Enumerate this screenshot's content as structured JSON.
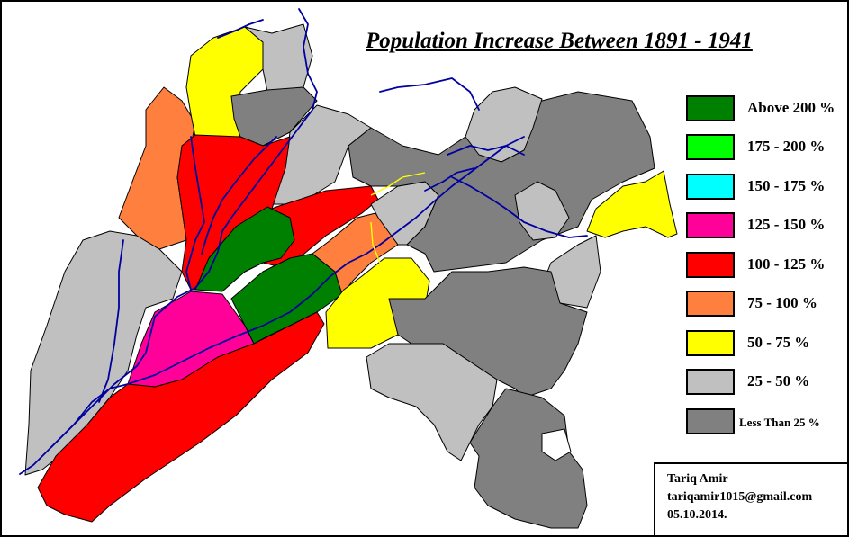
{
  "map": {
    "title": "Population Increase Between 1891 - 1941",
    "legend": [
      {
        "label": "Above 200 %",
        "color": "#008000"
      },
      {
        "label": "175 - 200 %",
        "color": "#00ff00"
      },
      {
        "label": "150 - 175 %",
        "color": "#00ffff"
      },
      {
        "label": "125 - 150 %",
        "color": "#ff0099"
      },
      {
        "label": "100 - 125 %",
        "color": "#ff0000"
      },
      {
        "label": "75 - 100 %",
        "color": "#ff7f3f"
      },
      {
        "label": "50 - 75 %",
        "color": "#ffff00"
      },
      {
        "label": "25 - 50 %",
        "color": "#c0c0c0"
      },
      {
        "label": "Less Than 25 %",
        "color": "#808080"
      }
    ],
    "credit": {
      "author": "Tariq Amir",
      "email": "tariqamir1015@gmail.com",
      "date": "05.10.2014."
    },
    "colors": {
      "river": "#0000a0",
      "border": "#000000",
      "highlight_border": "#ffff00"
    }
  }
}
